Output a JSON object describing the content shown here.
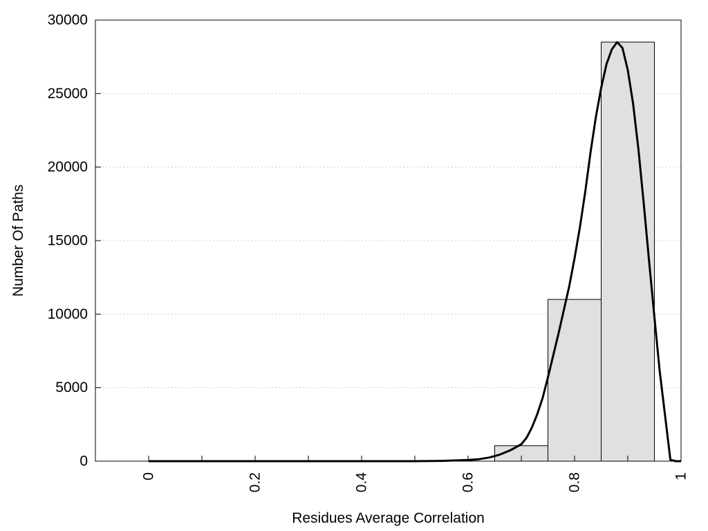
{
  "chart_data": {
    "type": "bar",
    "title": "",
    "xlabel": "Residues Average Correlation",
    "ylabel": "Number Of Paths",
    "xlim": [
      -0.1,
      1.0
    ],
    "ylim": [
      0,
      30000
    ],
    "xticks": [
      "0",
      "0.2",
      "0.4",
      "0.6",
      "0.8",
      "1"
    ],
    "xtick_values": [
      0,
      0.2,
      0.4,
      0.6,
      0.8,
      1.0
    ],
    "minor_xticks": [
      0.1,
      0.3,
      0.5,
      0.7,
      0.9
    ],
    "yticks": [
      "0",
      "5000",
      "10000",
      "15000",
      "20000",
      "25000",
      "30000"
    ],
    "ytick_values": [
      0,
      5000,
      10000,
      15000,
      20000,
      25000,
      30000
    ],
    "grid": "horizontal dotted",
    "colors": {
      "bar_fill": "#e0e0e0",
      "bar_stroke": "#000000",
      "curve": "#000000",
      "grid": "#cccccc"
    },
    "bars": [
      {
        "x0": 0.65,
        "x1": 0.75,
        "value": 1050
      },
      {
        "x0": 0.75,
        "x1": 0.85,
        "value": 11000
      },
      {
        "x0": 0.85,
        "x1": 0.95,
        "value": 28500
      }
    ],
    "curve": {
      "x": [
        0,
        0.5,
        0.55,
        0.6,
        0.62,
        0.64,
        0.66,
        0.68,
        0.7,
        0.71,
        0.72,
        0.73,
        0.74,
        0.75,
        0.76,
        0.77,
        0.78,
        0.79,
        0.8,
        0.81,
        0.82,
        0.83,
        0.84,
        0.85,
        0.86,
        0.87,
        0.88,
        0.89,
        0.9,
        0.91,
        0.92,
        0.93,
        0.94,
        0.95,
        0.96,
        0.97,
        0.98,
        0.99,
        1.0
      ],
      "y": [
        0,
        0,
        20,
        80,
        130,
        250,
        450,
        750,
        1150,
        1600,
        2300,
        3200,
        4300,
        5700,
        7200,
        8700,
        10300,
        11900,
        13800,
        15900,
        18300,
        21000,
        23400,
        25400,
        27000,
        28000,
        28500,
        28100,
        26600,
        24300,
        21200,
        17500,
        13600,
        9800,
        6100,
        3100,
        100,
        0,
        0
      ]
    }
  }
}
